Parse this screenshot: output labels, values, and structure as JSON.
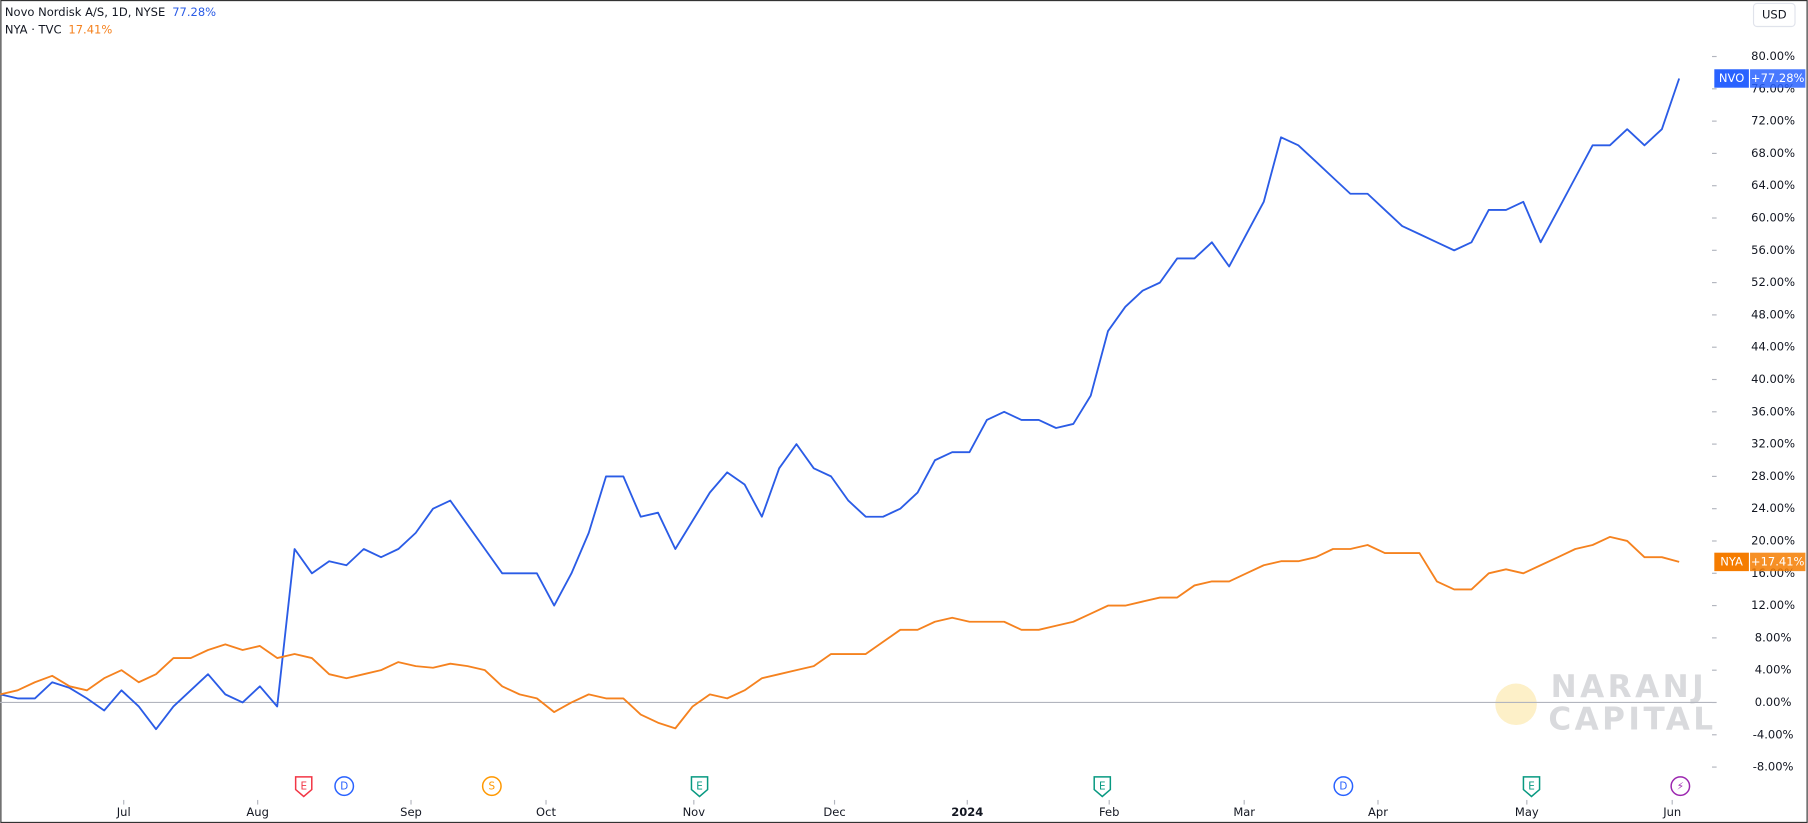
{
  "chart_data": {
    "type": "line",
    "currency": "USD",
    "ylim": [
      -11.5,
      87
    ],
    "xlim": [
      0,
      98.9
    ],
    "yticks": [
      {
        "value": -8,
        "label": "-8.00%"
      },
      {
        "value": -4,
        "label": "-4.00%"
      },
      {
        "value": 0,
        "label": "0.00%"
      },
      {
        "value": 4,
        "label": "4.00%"
      },
      {
        "value": 8,
        "label": "8.00%"
      },
      {
        "value": 12,
        "label": "12.00%"
      },
      {
        "value": 16,
        "label": "16.00%"
      },
      {
        "value": 20,
        "label": "20.00%"
      },
      {
        "value": 24,
        "label": "24.00%"
      },
      {
        "value": 28,
        "label": "28.00%"
      },
      {
        "value": 32,
        "label": "32.00%"
      },
      {
        "value": 36,
        "label": "36.00%"
      },
      {
        "value": 40,
        "label": "40.00%"
      },
      {
        "value": 44,
        "label": "44.00%"
      },
      {
        "value": 48,
        "label": "48.00%"
      },
      {
        "value": 52,
        "label": "52.00%"
      },
      {
        "value": 56,
        "label": "56.00%"
      },
      {
        "value": 60,
        "label": "60.00%"
      },
      {
        "value": 64,
        "label": "64.00%"
      },
      {
        "value": 68,
        "label": "68.00%"
      },
      {
        "value": 72,
        "label": "72.00%"
      },
      {
        "value": 76,
        "label": "76.00%"
      },
      {
        "value": 80,
        "label": "80.00%"
      }
    ],
    "xticks": [
      {
        "value": 7.13,
        "label": "Jul"
      },
      {
        "value": 14.87,
        "label": "Aug"
      },
      {
        "value": 23.73,
        "label": "Sep"
      },
      {
        "value": 31.53,
        "label": "Oct"
      },
      {
        "value": 40.07,
        "label": "Nov"
      },
      {
        "value": 48.2,
        "label": "Dec"
      },
      {
        "value": 55.87,
        "label": "2024"
      },
      {
        "value": 64.07,
        "label": "Feb"
      },
      {
        "value": 71.87,
        "label": "Mar"
      },
      {
        "value": 79.6,
        "label": "Apr"
      },
      {
        "value": 88.2,
        "label": "May"
      },
      {
        "value": 96.6,
        "label": "Jun"
      }
    ],
    "series": [
      {
        "name": "NVO",
        "legend": "Novo Nordisk A/S, 1D, NYSE",
        "change": "77.28%",
        "badge": "+77.28%",
        "color": "#2b5ce6",
        "badge_color": "#2962ff",
        "values": [
          1,
          0.5,
          0.5,
          2.5,
          1.8,
          0.5,
          -1,
          1.5,
          -0.5,
          -3.3,
          -0.5,
          1.5,
          3.5,
          1,
          0,
          2,
          -0.5,
          19,
          16,
          17.5,
          17,
          19,
          18,
          19,
          21,
          24,
          25,
          22,
          19,
          16,
          16,
          16,
          12,
          16,
          21,
          28,
          28,
          23,
          23.5,
          19,
          22.5,
          26,
          28.5,
          27,
          23,
          29,
          32,
          29,
          28,
          25,
          23,
          23,
          24,
          26,
          30,
          31,
          31,
          35,
          36,
          35,
          35,
          34,
          34.5,
          38,
          46,
          49,
          51,
          52,
          55,
          55,
          57,
          54,
          58,
          62,
          70,
          69,
          67,
          65,
          63,
          63,
          61,
          59,
          58,
          57,
          56,
          57,
          61,
          61,
          62,
          57,
          61,
          65,
          69,
          69,
          71,
          69,
          71,
          77.28
        ]
      },
      {
        "name": "NYA",
        "legend": "NYA · TVC",
        "change": "17.41%",
        "badge": "+17.41%",
        "color": "#f5821f",
        "badge_color": "#f57c00",
        "values": [
          1,
          1.5,
          2.5,
          3.3,
          2,
          1.5,
          3,
          4,
          2.5,
          3.5,
          5.5,
          5.5,
          6.5,
          7.2,
          6.5,
          7,
          5.5,
          6,
          5.5,
          3.5,
          3,
          3.5,
          4,
          5,
          4.5,
          4.3,
          4.8,
          4.5,
          4,
          2,
          1,
          0.5,
          -1.2,
          0,
          1,
          0.5,
          0.5,
          -1.5,
          -2.5,
          -3.2,
          -0.5,
          1,
          0.5,
          1.5,
          3,
          3.5,
          4,
          4.5,
          6,
          6,
          6,
          7.5,
          9,
          9,
          10,
          10.5,
          10,
          10,
          10,
          9,
          9,
          9.5,
          10,
          11,
          12,
          12,
          12.5,
          13,
          13,
          14.5,
          15,
          15,
          16,
          17,
          17.5,
          17.5,
          18,
          19,
          19,
          19.5,
          18.5,
          18.5,
          18.5,
          15,
          14,
          14,
          16,
          16.5,
          16,
          17,
          18,
          19,
          19.5,
          20.5,
          20,
          18,
          18,
          17.41
        ]
      }
    ],
    "events": [
      {
        "label": "E",
        "color": "#f23645",
        "x": 17.53
      },
      {
        "label": "D",
        "color": "#2962ff",
        "x": 19.87
      },
      {
        "label": "S",
        "color": "#ff9800",
        "x": 28.4
      },
      {
        "label": "E",
        "color": "#089981",
        "x": 40.4
      },
      {
        "label": "E",
        "color": "#089981",
        "x": 63.67
      },
      {
        "label": "D",
        "color": "#2962ff",
        "x": 77.6
      },
      {
        "label": "E",
        "color": "#089981",
        "x": 88.47
      },
      {
        "label": "⚡",
        "color": "#9c27b0",
        "x": 97.07
      }
    ],
    "watermark": [
      "NARANJ",
      "CAPITAL"
    ]
  }
}
